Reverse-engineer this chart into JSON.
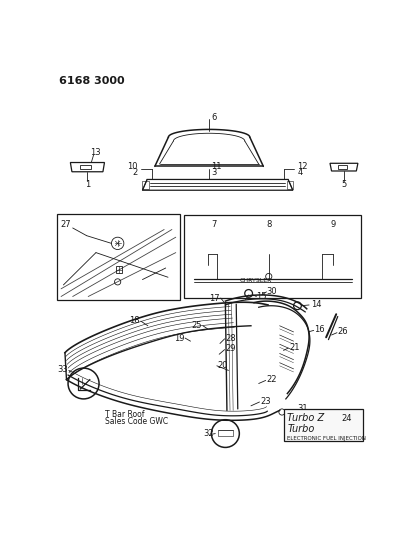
{
  "title": "6168 3000",
  "bg_color": "#ffffff",
  "line_color": "#1a1a1a",
  "title_fontsize": 8,
  "label_fontsize": 6,
  "fig_width": 4.08,
  "fig_height": 5.33,
  "dpi": 100,
  "tbar_text1": "T Bar Roof",
  "tbar_text2": "Sales Code GWC",
  "badge_line1": "Turbo Z",
  "badge_line2": "Turbo",
  "badge_line3": "ELECTRONIC FUEL INJECTION",
  "chrysler_text": "CHRYSLER"
}
